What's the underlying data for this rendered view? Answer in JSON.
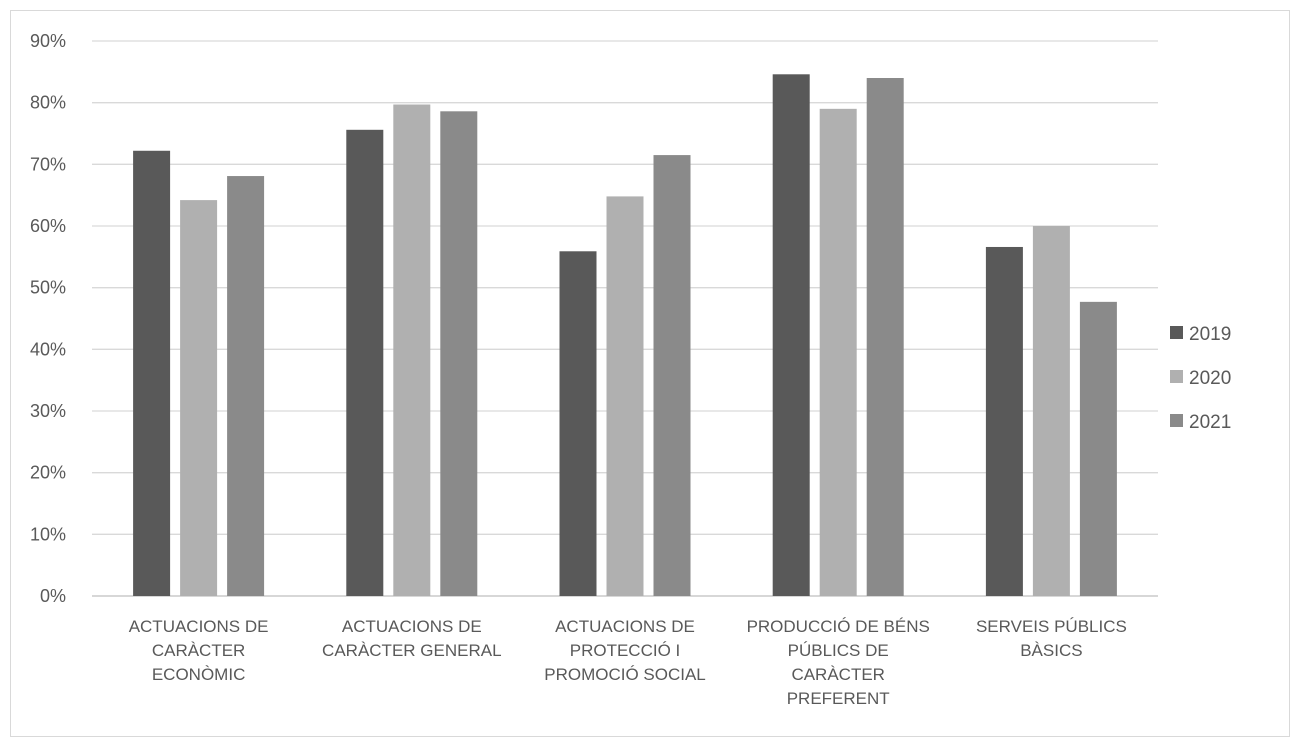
{
  "chart_data": {
    "type": "bar",
    "categories": [
      [
        "ACTUACIONS DE",
        "CARÀCTER",
        "ECONÒMIC"
      ],
      [
        "ACTUACIONS DE",
        "CARÀCTER GENERAL"
      ],
      [
        "ACTUACIONS DE",
        "PROTECCIÓ I",
        "PROMOCIÓ SOCIAL"
      ],
      [
        "PRODUCCIÓ DE BÉNS",
        "PÚBLICS DE",
        "CARÀCTER",
        "PREFERENT"
      ],
      [
        "SERVEIS PÚBLICS",
        "BÀSICS"
      ]
    ],
    "series": [
      {
        "name": "2019",
        "color": "#595959",
        "values": [
          72.2,
          75.6,
          55.9,
          84.6,
          56.6
        ]
      },
      {
        "name": "2020",
        "color": "#b0b0b0",
        "values": [
          64.2,
          79.7,
          64.8,
          79.0,
          60.0
        ]
      },
      {
        "name": "2021",
        "color": "#8a8a8a",
        "values": [
          68.1,
          78.6,
          71.5,
          84.0,
          47.7
        ]
      }
    ],
    "yticks": [
      "0%",
      "10%",
      "20%",
      "30%",
      "40%",
      "50%",
      "60%",
      "70%",
      "80%",
      "90%"
    ],
    "ylim": [
      0,
      90
    ],
    "grid": true,
    "legend_position": "right",
    "title": "",
    "xlabel": "",
    "ylabel": ""
  }
}
